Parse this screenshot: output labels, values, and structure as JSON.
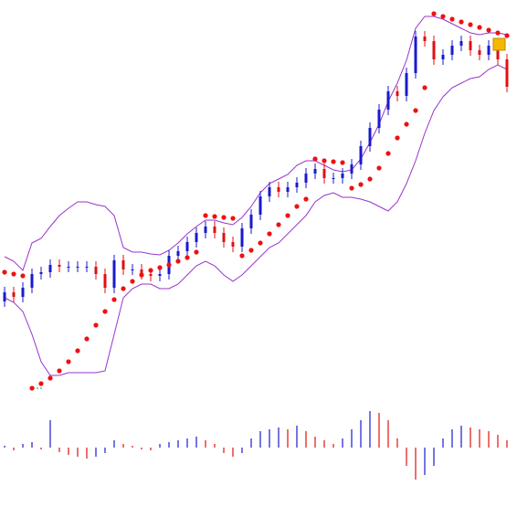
{
  "chart_data": {
    "type": "candlestick",
    "open": [
      236,
      246,
      241,
      251,
      266,
      268,
      276,
      274,
      274,
      274,
      274,
      266,
      251,
      281,
      271,
      271,
      266,
      264,
      266,
      286,
      291,
      301,
      311,
      318,
      311,
      301,
      296,
      316,
      331,
      351,
      361,
      356,
      361,
      366,
      376,
      381,
      371,
      371,
      376,
      386,
      406,
      426,
      446,
      466,
      461,
      486,
      526,
      521,
      501,
      506,
      516,
      521,
      511,
      506,
      516,
      501
    ],
    "high": [
      252,
      252,
      257,
      272,
      274,
      282,
      282,
      280,
      280,
      280,
      280,
      272,
      287,
      287,
      277,
      277,
      272,
      272,
      292,
      297,
      307,
      317,
      324,
      324,
      317,
      307,
      322,
      337,
      357,
      367,
      367,
      367,
      372,
      382,
      387,
      387,
      377,
      382,
      392,
      412,
      432,
      452,
      472,
      472,
      492,
      532,
      532,
      527,
      512,
      522,
      527,
      527,
      517,
      522,
      522,
      507
    ],
    "low": [
      230,
      235,
      235,
      245,
      260,
      262,
      268,
      268,
      268,
      268,
      260,
      245,
      245,
      265,
      265,
      260,
      258,
      258,
      260,
      280,
      285,
      295,
      305,
      305,
      295,
      290,
      290,
      310,
      325,
      345,
      350,
      350,
      355,
      360,
      370,
      365,
      365,
      365,
      370,
      380,
      400,
      420,
      440,
      455,
      455,
      480,
      515,
      495,
      495,
      500,
      510,
      505,
      500,
      500,
      495,
      465
    ],
    "close": [
      246,
      241,
      251,
      266,
      268,
      276,
      274,
      274,
      274,
      274,
      266,
      251,
      281,
      271,
      271,
      266,
      264,
      266,
      286,
      291,
      301,
      311,
      318,
      311,
      301,
      296,
      316,
      331,
      351,
      361,
      356,
      361,
      366,
      376,
      381,
      371,
      371,
      376,
      386,
      406,
      426,
      446,
      466,
      461,
      486,
      526,
      521,
      501,
      506,
      516,
      521,
      511,
      506,
      516,
      501,
      471
    ],
    "up_color": "#1a1acc",
    "down_color": "#e01010",
    "bands": {
      "color": "#9933cc",
      "upper": [
        285,
        280,
        270,
        300,
        305,
        318,
        330,
        338,
        345,
        345,
        342,
        340,
        330,
        295,
        290,
        290,
        288,
        287,
        292,
        300,
        310,
        318,
        325,
        325,
        322,
        320,
        328,
        340,
        355,
        365,
        370,
        375,
        385,
        390,
        390,
        385,
        380,
        378,
        380,
        392,
        410,
        430,
        455,
        475,
        500,
        535,
        548,
        548,
        545,
        540,
        535,
        530,
        528,
        530,
        530,
        528
      ],
      "lower": [
        240,
        235,
        225,
        200,
        170,
        155,
        155,
        158,
        158,
        158,
        158,
        160,
        200,
        240,
        250,
        255,
        255,
        250,
        250,
        255,
        265,
        275,
        280,
        275,
        265,
        258,
        265,
        275,
        285,
        295,
        300,
        310,
        320,
        330,
        345,
        352,
        355,
        350,
        350,
        348,
        345,
        340,
        335,
        345,
        365,
        390,
        420,
        445,
        460,
        470,
        475,
        480,
        482,
        490,
        495,
        490
      ]
    },
    "sar": {
      "color": "#ee1111",
      "values": [
        268,
        266,
        264,
        141,
        146,
        152,
        160,
        170,
        182,
        195,
        210,
        225,
        238,
        250,
        258,
        265,
        270,
        273,
        276,
        280,
        284,
        290,
        330,
        329,
        328,
        327,
        286,
        292,
        300,
        310,
        320,
        330,
        340,
        348,
        392,
        390,
        389,
        388,
        360,
        364,
        370,
        382,
        398,
        415,
        430,
        445,
        470,
        551,
        548,
        545,
        542,
        539,
        536,
        533,
        530,
        527
      ]
    },
    "ylim": [
      136,
      566
    ],
    "histogram": {
      "hlim": [
        -40,
        40
      ],
      "values": [
        2,
        -3,
        4,
        6,
        -2,
        30,
        -5,
        -8,
        -10,
        -12,
        -10,
        -6,
        8,
        4,
        2,
        -2,
        -3,
        4,
        6,
        8,
        10,
        12,
        8,
        4,
        -6,
        -10,
        -6,
        10,
        18,
        20,
        22,
        20,
        24,
        18,
        12,
        8,
        4,
        10,
        20,
        30,
        40,
        38,
        30,
        10,
        -20,
        -35,
        -30,
        -20,
        10,
        20,
        24,
        22,
        20,
        18,
        14,
        8
      ]
    }
  }
}
